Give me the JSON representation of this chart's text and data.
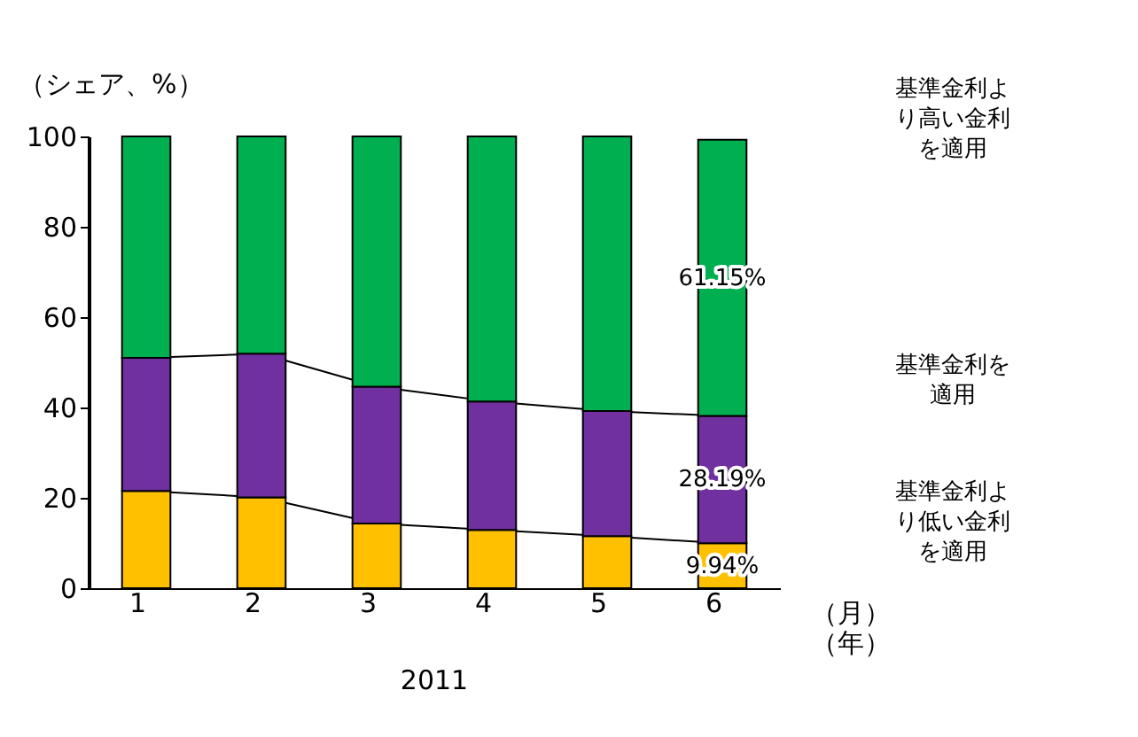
{
  "chart_data": {
    "type": "bar",
    "stacked": true,
    "categories": [
      "1",
      "2",
      "3",
      "4",
      "5",
      "6"
    ],
    "ylabel": "（シェア、%）",
    "xlabel": "（月）",
    "ylim": [
      0,
      100
    ],
    "yticks": [
      0,
      20,
      40,
      60,
      80,
      100
    ],
    "grid": false,
    "legend": false,
    "series": [
      {
        "name": "基準金利より低い金利を適用",
        "color": "#ffc000",
        "values": [
          21.5,
          20.1,
          14.3,
          12.9,
          11.5,
          9.94
        ],
        "value_labels": [
          null,
          null,
          null,
          null,
          null,
          "9.94%"
        ]
      },
      {
        "name": "基準金利を適用",
        "color": "#7030a0",
        "values": [
          29.5,
          31.8,
          30.3,
          28.4,
          27.7,
          28.19
        ],
        "value_labels": [
          null,
          null,
          null,
          null,
          null,
          "28.19%"
        ]
      },
      {
        "name": "基準金利より高い金利を適用",
        "color": "#00b050",
        "values": [
          49.0,
          48.1,
          55.4,
          58.7,
          60.8,
          61.15
        ],
        "value_labels": [
          null,
          null,
          null,
          null,
          null,
          "61.15%"
        ]
      }
    ],
    "annotations": [
      "（年）",
      "2011"
    ]
  }
}
